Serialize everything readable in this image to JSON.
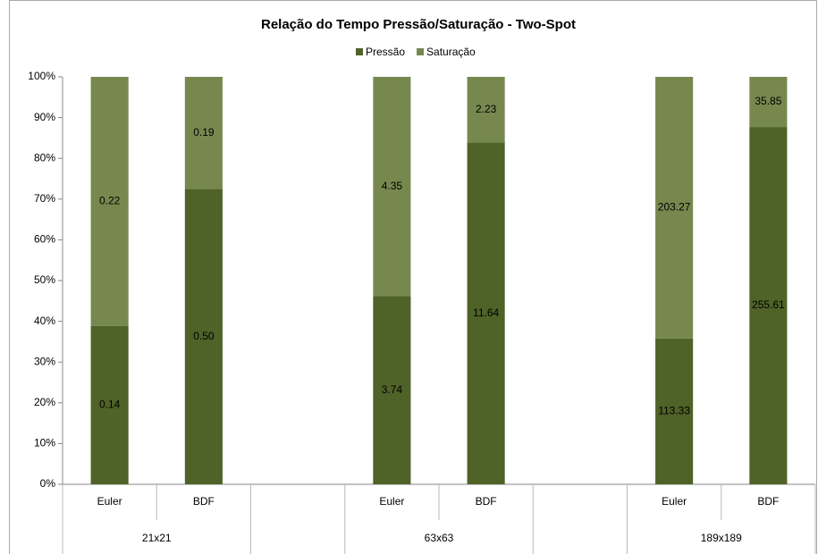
{
  "chart_data": {
    "type": "stacked_percent_bar",
    "title": "Relação do Tempo Pressão/Saturação - Two-Spot",
    "categories": [
      "Euler",
      "BDF",
      null,
      "Euler",
      "BDF",
      null,
      "Euler",
      "BDF"
    ],
    "groups": [
      "21x21",
      "63x63",
      "189x189"
    ],
    "series": [
      {
        "name": "Pressão",
        "color": "#4f6228",
        "values": [
          0.14,
          0.5,
          null,
          3.74,
          11.64,
          null,
          113.33,
          255.61
        ],
        "value_labels": [
          "0.14",
          "0.50",
          null,
          "3.74",
          "11.64",
          null,
          "113.33",
          "255.61"
        ]
      },
      {
        "name": "Saturação",
        "color": "#77884f",
        "values": [
          0.22,
          0.19,
          null,
          4.35,
          2.23,
          null,
          203.27,
          35.85
        ],
        "value_labels": [
          "0.22",
          "0.19",
          null,
          "4.35",
          "2.23",
          null,
          "203.27",
          "35.85"
        ]
      }
    ],
    "ylim": [
      0,
      100
    ],
    "yticks": [
      {
        "value": 0,
        "label": "0%"
      },
      {
        "value": 10,
        "label": "10%"
      },
      {
        "value": 20,
        "label": "20%"
      },
      {
        "value": 30,
        "label": "30%"
      },
      {
        "value": 40,
        "label": "40%"
      },
      {
        "value": 50,
        "label": "50%"
      },
      {
        "value": 60,
        "label": "60%"
      },
      {
        "value": 70,
        "label": "70%"
      },
      {
        "value": 80,
        "label": "80%"
      },
      {
        "value": 90,
        "label": "90%"
      },
      {
        "value": 100,
        "label": "100%"
      }
    ],
    "legend": "top",
    "grid": false
  }
}
